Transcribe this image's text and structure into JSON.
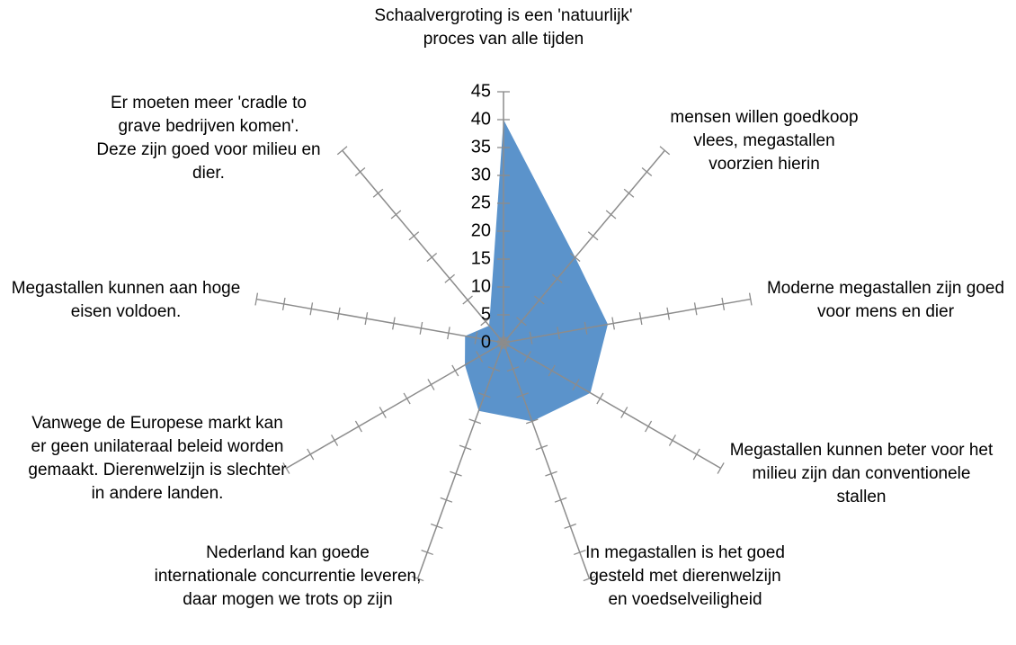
{
  "chart_data": {
    "type": "radar",
    "categories": [
      "Schaalvergroting is een 'natuurlijk' proces van alle tijden",
      "mensen willen goedkoop vlees, megastallen voorzien hierin",
      "Moderne megastallen zijn goed voor mens en dier",
      "Megastallen kunnen beter voor het milieu zijn dan conventionele stallen",
      "In megastallen is het goed gesteld met dierenwelzijn en voedselveiligheid",
      "Nederland kan goede internationale concurrentie leveren, daar mogen we trots op zijn",
      "Vanwege de Europese markt kan er geen unilateraal beleid worden gemaakt. Dierenwelzijn is slechter in andere landen.",
      "Megastallen kunnen aan hoge eisen voldoen.",
      "Er moeten meer 'cradle to grave bedrijven komen'. Deze zijn goed voor milieu en dier."
    ],
    "values": [
      40,
      20,
      19,
      18,
      15,
      13,
      8,
      7,
      4
    ],
    "color": "#5b93cb",
    "ylim": [
      0,
      45
    ],
    "yticks": [
      0,
      5,
      10,
      15,
      20,
      25,
      30,
      35,
      40,
      45
    ],
    "grid": true
  }
}
